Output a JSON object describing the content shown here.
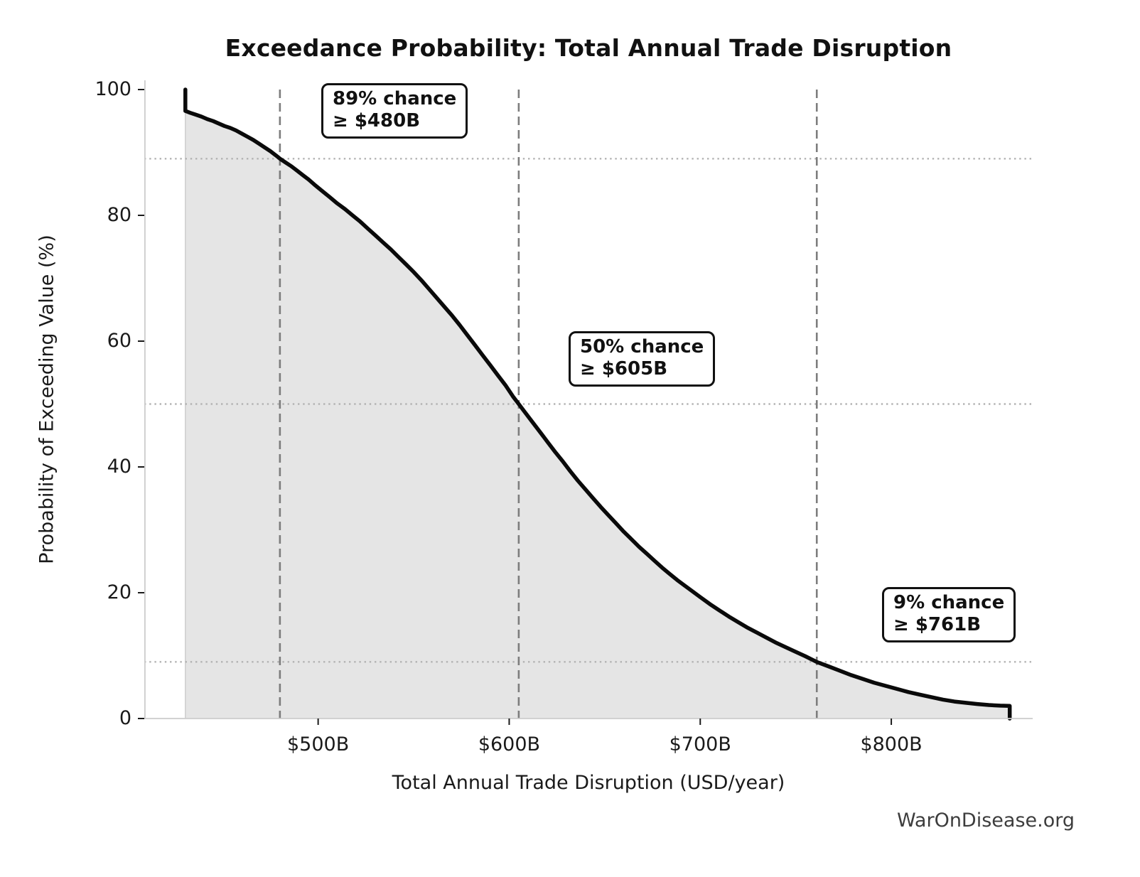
{
  "footer": "WarOnDisease.org",
  "chart_data": {
    "type": "line",
    "subtype": "exceedance-probability-curve",
    "title": "Exceedance Probability: Total Annual Trade Disruption",
    "xlabel": "Total Annual Trade Disruption (USD/year)",
    "ylabel": "Probability of Exceeding Value (%)",
    "xlim": [
      409,
      874
    ],
    "ylim": [
      0,
      100
    ],
    "x_ticks": [
      {
        "value": 500,
        "label": "$500B"
      },
      {
        "value": 600,
        "label": "$600B"
      },
      {
        "value": 700,
        "label": "$700B"
      },
      {
        "value": 800,
        "label": "$800B"
      }
    ],
    "y_ticks": [
      {
        "value": 0,
        "label": "0"
      },
      {
        "value": 20,
        "label": "20"
      },
      {
        "value": 40,
        "label": "40"
      },
      {
        "value": 60,
        "label": "60"
      },
      {
        "value": 80,
        "label": "80"
      },
      {
        "value": 100,
        "label": "100"
      }
    ],
    "legend": "none",
    "grid": "reference lines only: dashed vertical at each annotation threshold, dotted horizontal at each annotation probability",
    "annotations": [
      {
        "line1": "89% chance",
        "line2": "≥ $480B",
        "probability_pct": 89,
        "threshold_usd_b": 480
      },
      {
        "line1": "50% chance",
        "line2": "≥ $605B",
        "probability_pct": 50,
        "threshold_usd_b": 605
      },
      {
        "line1": "9% chance",
        "line2": "≥ $761B",
        "probability_pct": 9,
        "threshold_usd_b": 761
      }
    ],
    "curve_points_x_usd_b_p_pct": [
      [
        430.5,
        100
      ],
      [
        430.5,
        96.6
      ],
      [
        433,
        96.3
      ],
      [
        436,
        96.0
      ],
      [
        439,
        95.7
      ],
      [
        442,
        95.3
      ],
      [
        445,
        95.0
      ],
      [
        448,
        94.6
      ],
      [
        451,
        94.2
      ],
      [
        454,
        93.9
      ],
      [
        457,
        93.5
      ],
      [
        460,
        93.0
      ],
      [
        463,
        92.5
      ],
      [
        466,
        92.0
      ],
      [
        469,
        91.4
      ],
      [
        472,
        90.8
      ],
      [
        475,
        90.2
      ],
      [
        478,
        89.5
      ],
      [
        480,
        89.0
      ],
      [
        483,
        88.4
      ],
      [
        486,
        87.8
      ],
      [
        489,
        87.1
      ],
      [
        492,
        86.4
      ],
      [
        495,
        85.7
      ],
      [
        498,
        84.9
      ],
      [
        502,
        83.9
      ],
      [
        506,
        82.9
      ],
      [
        510,
        81.9
      ],
      [
        514,
        81.0
      ],
      [
        518,
        80.0
      ],
      [
        522,
        79.0
      ],
      [
        526,
        77.9
      ],
      [
        530,
        76.8
      ],
      [
        534,
        75.7
      ],
      [
        538,
        74.6
      ],
      [
        542,
        73.4
      ],
      [
        546,
        72.2
      ],
      [
        550,
        71.0
      ],
      [
        554,
        69.7
      ],
      [
        558,
        68.3
      ],
      [
        562,
        66.9
      ],
      [
        566,
        65.5
      ],
      [
        570,
        64.1
      ],
      [
        574,
        62.6
      ],
      [
        578,
        61.0
      ],
      [
        582,
        59.4
      ],
      [
        586,
        57.8
      ],
      [
        590,
        56.2
      ],
      [
        594,
        54.6
      ],
      [
        598,
        53.0
      ],
      [
        602,
        51.2
      ],
      [
        605,
        50.0
      ],
      [
        608,
        48.8
      ],
      [
        612,
        47.2
      ],
      [
        616,
        45.6
      ],
      [
        620,
        44.0
      ],
      [
        624,
        42.4
      ],
      [
        628,
        40.9
      ],
      [
        632,
        39.3
      ],
      [
        636,
        37.8
      ],
      [
        640,
        36.4
      ],
      [
        644,
        35.0
      ],
      [
        648,
        33.6
      ],
      [
        652,
        32.3
      ],
      [
        656,
        31.0
      ],
      [
        660,
        29.7
      ],
      [
        664,
        28.5
      ],
      [
        668,
        27.3
      ],
      [
        672,
        26.2
      ],
      [
        676,
        25.1
      ],
      [
        680,
        24.0
      ],
      [
        684,
        23.0
      ],
      [
        688,
        22.0
      ],
      [
        692,
        21.1
      ],
      [
        696,
        20.2
      ],
      [
        700,
        19.3
      ],
      [
        705,
        18.2
      ],
      [
        710,
        17.2
      ],
      [
        715,
        16.2
      ],
      [
        720,
        15.3
      ],
      [
        725,
        14.4
      ],
      [
        730,
        13.6
      ],
      [
        735,
        12.8
      ],
      [
        740,
        12.0
      ],
      [
        745,
        11.3
      ],
      [
        750,
        10.6
      ],
      [
        755,
        9.9
      ],
      [
        761,
        9.0
      ],
      [
        767,
        8.3
      ],
      [
        773,
        7.6
      ],
      [
        779,
        6.9
      ],
      [
        785,
        6.3
      ],
      [
        791,
        5.7
      ],
      [
        797,
        5.2
      ],
      [
        803,
        4.7
      ],
      [
        809,
        4.2
      ],
      [
        815,
        3.8
      ],
      [
        821,
        3.4
      ],
      [
        827,
        3.0
      ],
      [
        833,
        2.7
      ],
      [
        839,
        2.5
      ],
      [
        845,
        2.3
      ],
      [
        851,
        2.15
      ],
      [
        857,
        2.05
      ],
      [
        862,
        2.0
      ],
      [
        862,
        0
      ]
    ],
    "colors": {
      "curve": "#0a0a0a",
      "fill": "#e5e5e5",
      "fill_edge": "#cccccc",
      "dashed_reference": "#7d7d7d",
      "dotted_reference": "#b3b3b3",
      "spine": "#cccccc",
      "tick_mark": "#1a1a1a",
      "text": "#1a1a1a",
      "footer_text": "#3d3d3d",
      "annotation_border": "#111111",
      "background": "#ffffff"
    }
  }
}
